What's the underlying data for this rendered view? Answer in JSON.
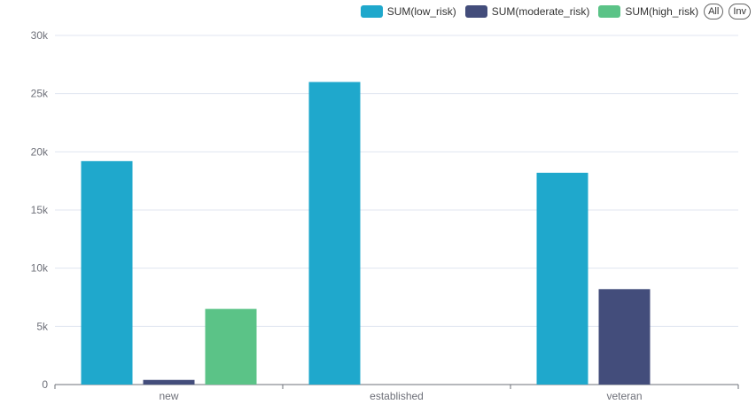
{
  "legend": {
    "all_label": "All",
    "inv_label": "Inv"
  },
  "chart_data": {
    "type": "bar",
    "categories": [
      "new",
      "established",
      "veteran"
    ],
    "series": [
      {
        "name": "SUM(low_risk)",
        "color": "#1fa8cc",
        "values": [
          19200,
          26000,
          18200
        ]
      },
      {
        "name": "SUM(moderate_risk)",
        "color": "#434d7b",
        "values": [
          400,
          0,
          8200
        ]
      },
      {
        "name": "SUM(high_risk)",
        "color": "#5bc387",
        "values": [
          6500,
          0,
          0
        ]
      }
    ],
    "yticks": [
      "0",
      "5k",
      "10k",
      "15k",
      "20k",
      "25k",
      "30k"
    ],
    "ylim": [
      0,
      30000
    ],
    "grid": true,
    "legend_position": "top-right"
  }
}
